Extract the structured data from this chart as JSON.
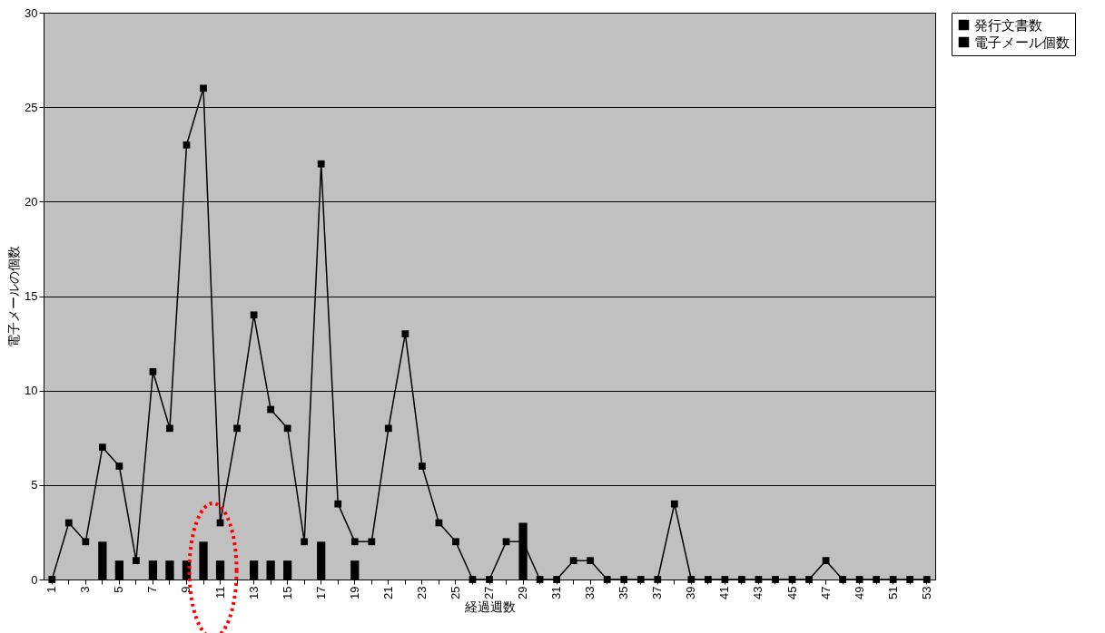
{
  "chart_data": {
    "type": "bar",
    "xlabel": "経過週数",
    "ylabel": "電子メールの個数",
    "categories": [
      "1",
      null,
      "3",
      null,
      "5",
      null,
      "7",
      null,
      "9",
      null,
      "11",
      null,
      "13",
      null,
      "15",
      null,
      "17",
      null,
      "19",
      null,
      "21",
      null,
      "23",
      null,
      "25",
      null,
      "27",
      null,
      "29",
      null,
      "31",
      null,
      "33",
      null,
      "35",
      null,
      "37",
      null,
      "39",
      null,
      "41",
      null,
      "43",
      null,
      "45",
      null,
      "47",
      null,
      "49",
      null,
      "51",
      null,
      "53"
    ],
    "series": [
      {
        "name": "発行文書数",
        "color": "#000000",
        "values": [
          0,
          0,
          0,
          2,
          1,
          0,
          1,
          1,
          1,
          2,
          1,
          0,
          1,
          1,
          1,
          0,
          2,
          0,
          1,
          0,
          0,
          0,
          0,
          0,
          0,
          0,
          0,
          0,
          3,
          0,
          0,
          0,
          0,
          0,
          0,
          0,
          0,
          0,
          0,
          0,
          0,
          0,
          0,
          0,
          0,
          0,
          0,
          0,
          0,
          0,
          0,
          0,
          0
        ]
      },
      {
        "name": "電子メール個数",
        "type": "line",
        "color": "#000000",
        "values": [
          0,
          3,
          2,
          7,
          6,
          1,
          11,
          8,
          23,
          26,
          3,
          8,
          14,
          9,
          8,
          2,
          22,
          4,
          2,
          2,
          8,
          13,
          6,
          3,
          2,
          0,
          0,
          2,
          2,
          0,
          0,
          1,
          1,
          0,
          0,
          0,
          0,
          4,
          0,
          0,
          0,
          0,
          0,
          0,
          0,
          0,
          1,
          0,
          0,
          0,
          0,
          0,
          0
        ]
      }
    ],
    "ylim": [
      0,
      30
    ],
    "yticks": [
      0,
      5,
      10,
      15,
      20,
      25,
      30
    ],
    "grid": "y",
    "legend": "right",
    "marker": "square",
    "line_style": "solid"
  }
}
